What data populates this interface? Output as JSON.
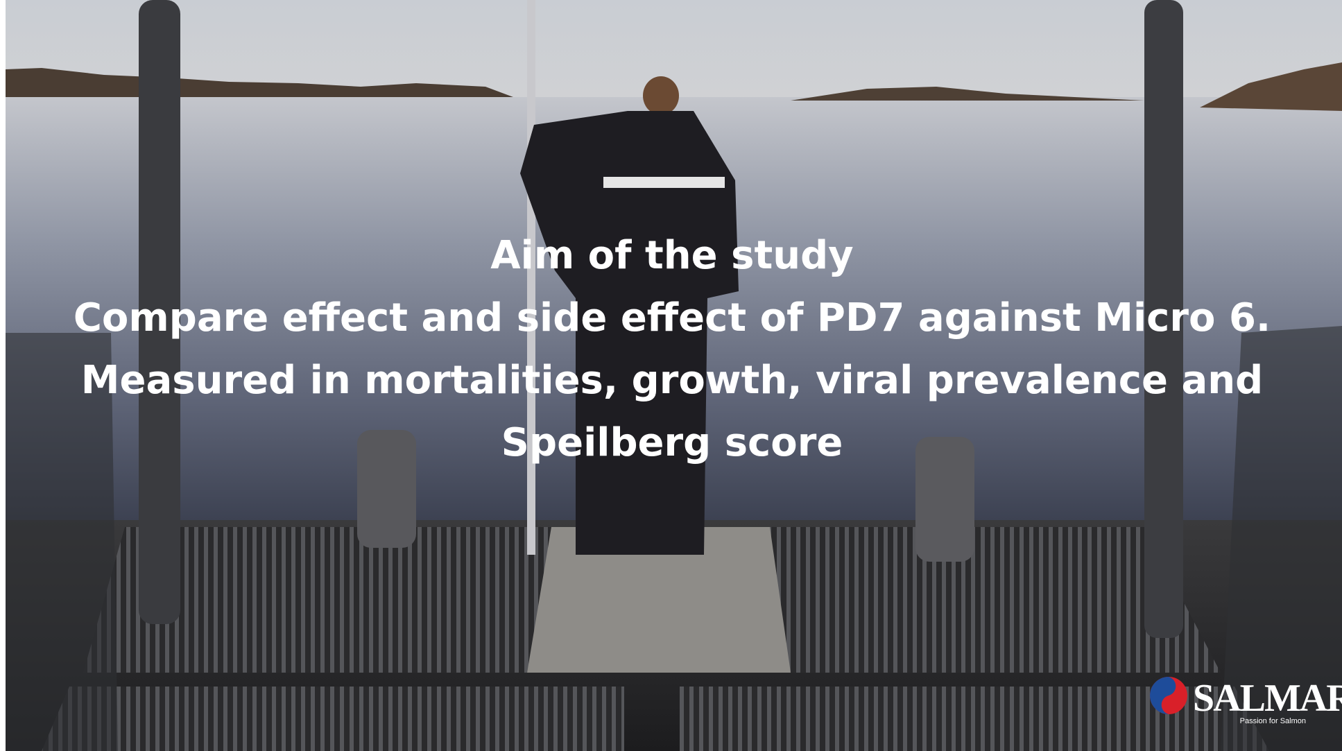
{
  "slide": {
    "heading": "Aim of the study",
    "lines": [
      "Compare effect and side effect of PD7 against Micro 6.",
      "Measured in mortalities, growth, viral prevalence and",
      "Speilberg score"
    ],
    "logo": {
      "name": "SALMAR",
      "tagline": "Passion for Salmon"
    }
  }
}
